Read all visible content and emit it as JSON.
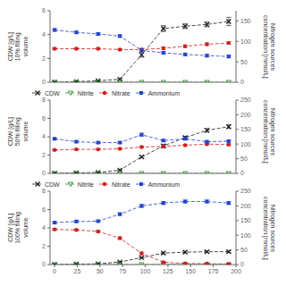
{
  "chart_data": [
    {
      "type": "line",
      "y_label": "CDW [g/L]\n10% filling\nvolume",
      "y2_label": "Nitrogen sources\nconcentration [mmol/L]",
      "x": [
        0,
        24,
        48,
        72,
        96,
        120,
        144,
        168,
        192
      ],
      "xlim": [
        -5,
        200
      ],
      "xticks": [
        0,
        25,
        50,
        75,
        100,
        125,
        150,
        175,
        200
      ],
      "ylim": [
        0,
        6
      ],
      "yticks": [
        0,
        2,
        4,
        6
      ],
      "y2lim": [
        0,
        175
      ],
      "y2ticks": [
        0,
        50,
        100,
        150
      ],
      "grid": false,
      "legend": false,
      "tick_labels": "y",
      "series": [
        {
          "name": "CDW",
          "color": "#1a1a1a",
          "marker": "x",
          "line_style": "dashed",
          "axis": "y",
          "values": [
            0.0,
            0.05,
            0.12,
            0.25,
            2.3,
            4.5,
            4.7,
            4.85,
            5.1
          ],
          "errors": [
            0.0,
            0.02,
            0.02,
            0.05,
            0.2,
            0.25,
            0.2,
            0.2,
            0.35
          ]
        },
        {
          "name": "Nitrite",
          "color": "#2e8b2e",
          "marker": "triangle_down",
          "line_style": "dashed",
          "axis": "y2",
          "values": [
            0.0,
            0.0,
            0.0,
            0.0,
            0.0,
            0.0,
            0.0,
            0.0,
            0.0
          ],
          "errors": [
            0.0,
            0.0,
            0.0,
            0.0,
            0.0,
            0.0,
            0.0,
            0.0,
            0.0
          ]
        },
        {
          "name": "Nitrate",
          "color": "#cc2020",
          "marker": "circle",
          "line_style": "dashed",
          "axis": "y2",
          "values": [
            82,
            82,
            82,
            80,
            80,
            83,
            88,
            93,
            96
          ],
          "errors": [
            2,
            2,
            2,
            2,
            3,
            3,
            3,
            3,
            3
          ]
        },
        {
          "name": "Ammonium",
          "color": "#2244cc",
          "marker": "square",
          "line_style": "dashed",
          "axis": "y2",
          "values": [
            128,
            122,
            118,
            113,
            78,
            72,
            68,
            65,
            63
          ],
          "errors": [
            3,
            3,
            3,
            3,
            4,
            3,
            3,
            3,
            3
          ]
        }
      ]
    },
    {
      "type": "line",
      "y_label": "CDW [g/L]\n50% filling\nvolume",
      "y2_label": "Nitrogen sources\nconcentration [mmol/L]",
      "x": [
        0,
        24,
        48,
        72,
        96,
        120,
        144,
        168,
        192
      ],
      "xlim": [
        -5,
        200
      ],
      "xticks": [
        0,
        25,
        50,
        75,
        100,
        125,
        150,
        175,
        200
      ],
      "ylim": [
        0,
        8
      ],
      "yticks": [
        0,
        2,
        4,
        6,
        8
      ],
      "y2lim": [
        0,
        250
      ],
      "y2ticks": [
        0,
        50,
        100,
        150,
        200,
        250
      ],
      "grid": false,
      "legend": "upper left",
      "tick_labels": "y",
      "series": [
        {
          "name": "CDW",
          "color": "#1a1a1a",
          "marker": "x",
          "line_style": "dashed",
          "axis": "y",
          "values": [
            0.0,
            0.05,
            0.1,
            0.35,
            1.8,
            3.0,
            3.9,
            4.7,
            5.1
          ],
          "errors": [
            0.0,
            0.02,
            0.02,
            0.05,
            0.1,
            0.15,
            0.15,
            0.2,
            0.2
          ]
        },
        {
          "name": "Nitrite",
          "color": "#2e8b2e",
          "marker": "triangle_down",
          "line_style": "dashed",
          "axis": "y2",
          "values": [
            0.0,
            0.0,
            0.0,
            0.05,
            0.0,
            0.0,
            0.0,
            0.0,
            0.0
          ],
          "errors": [
            0.0,
            0.0,
            0.0,
            0.0,
            0.0,
            0.0,
            0.0,
            0.0,
            0.0
          ]
        },
        {
          "name": "Nitrate",
          "color": "#cc2020",
          "marker": "circle",
          "line_style": "dashed",
          "axis": "y2",
          "values": [
            80,
            82,
            82,
            84,
            90,
            92,
            96,
            100,
            98
          ],
          "errors": [
            2,
            2,
            2,
            2,
            3,
            3,
            3,
            3,
            3
          ]
        },
        {
          "name": "Ammonium",
          "color": "#2244cc",
          "marker": "square",
          "line_style": "dashed",
          "axis": "y2",
          "values": [
            118,
            108,
            105,
            105,
            132,
            112,
            118,
            108,
            110
          ],
          "errors": [
            3,
            3,
            3,
            3,
            5,
            3,
            3,
            3,
            3
          ]
        }
      ]
    },
    {
      "type": "line",
      "y_label": "CDW [g/L]\n100% filling\nvolume",
      "y2_label": "Nitrogen sources\nconcentration [mmol/L]",
      "x": [
        0,
        24,
        48,
        72,
        96,
        120,
        144,
        168,
        192
      ],
      "xlim": [
        -5,
        200
      ],
      "xticks": [
        0,
        25,
        50,
        75,
        100,
        125,
        150,
        175,
        200
      ],
      "ylim": [
        0,
        8
      ],
      "yticks": [
        0,
        2,
        4,
        6,
        8
      ],
      "y2lim": [
        0,
        250
      ],
      "y2ticks": [
        0,
        50,
        100,
        150,
        200,
        250
      ],
      "grid": false,
      "legend": "upper left",
      "series": [
        {
          "name": "CDW",
          "color": "#1a1a1a",
          "marker": "x",
          "line_style": "dashed",
          "axis": "y",
          "values": [
            0.0,
            0.05,
            0.08,
            0.28,
            0.75,
            1.25,
            1.35,
            1.4,
            1.4
          ],
          "errors": [
            0.0,
            0.02,
            0.02,
            0.05,
            0.05,
            0.1,
            0.1,
            0.1,
            0.1
          ]
        },
        {
          "name": "Nitrite",
          "color": "#2e8b2e",
          "marker": "triangle_down",
          "line_style": "dashed",
          "axis": "y2",
          "values": [
            0.0,
            0.0,
            0.0,
            0.0,
            0.0,
            0.0,
            0.0,
            0.0,
            0.0
          ],
          "errors": [
            0.0,
            0.0,
            0.0,
            0.0,
            0.0,
            0.0,
            0.0,
            0.0,
            0.0
          ]
        },
        {
          "name": "Nitrate",
          "color": "#cc2020",
          "marker": "circle",
          "line_style": "dashed",
          "axis": "y2",
          "values": [
            120,
            118,
            113,
            90,
            38,
            8,
            4,
            3,
            2
          ],
          "errors": [
            3,
            3,
            3,
            4,
            5,
            2,
            2,
            2,
            2
          ]
        },
        {
          "name": "Ammonium",
          "color": "#2244cc",
          "marker": "square",
          "line_style": "dashed",
          "axis": "y2",
          "values": [
            143,
            147,
            148,
            172,
            200,
            210,
            215,
            215,
            210
          ],
          "errors": [
            3,
            3,
            3,
            4,
            5,
            5,
            5,
            5,
            5
          ]
        }
      ]
    }
  ]
}
